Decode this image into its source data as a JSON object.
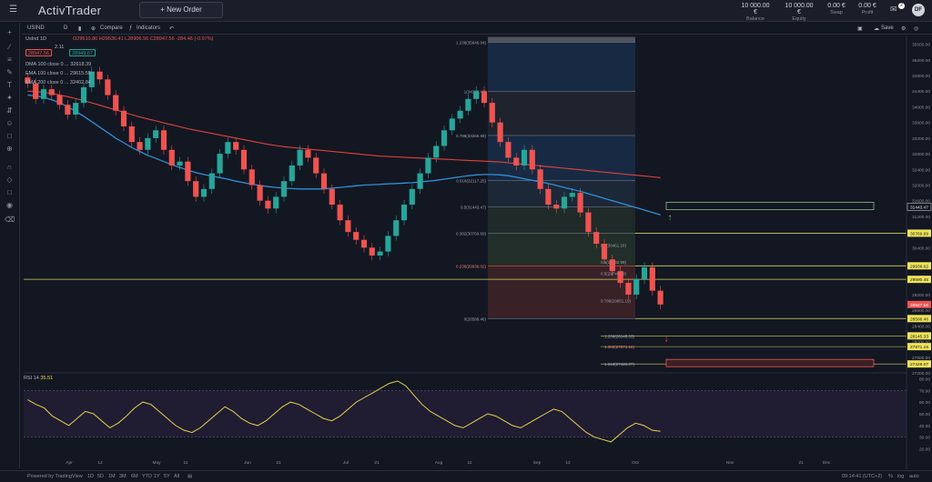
{
  "app": {
    "name": "ActivTrader",
    "new_order_label": "+ New Order"
  },
  "account": [
    {
      "value": "10 000.00 €",
      "label": "Balance"
    },
    {
      "value": "10 000.00 €",
      "label": "Equity"
    },
    {
      "value": "0.00 €",
      "label": "Swap"
    },
    {
      "value": "0.00 €",
      "label": "Profit"
    }
  ],
  "notifications_count": "2",
  "user_initials": "DF",
  "toolbar": {
    "symbol": "USIND",
    "interval": "D",
    "compare": "Compare",
    "indicators": "Indicators",
    "save": "Save"
  },
  "legend": {
    "symbol_line": "UsInd  1D",
    "ohlc": "O29510.86 H29536.41 L28906.56 C28947.56 -284.46 (-0.97%)",
    "sell_price": "28947.56",
    "spread": "2.11",
    "buy_price": "28949.67",
    "line1": "DMA 100 close 0 ... 32618.39",
    "line2": "EMA 100 close 0 ... 29615.59",
    "line3": "EMA 200 close 0 ... 32402.84"
  },
  "fib_levels": [
    {
      "label": "1.236(35646.04)",
      "price": 35646.04
    },
    {
      "label": "1(34398.48)",
      "price": 34398.48
    },
    {
      "label": "0.786(33266.98)",
      "price": 33266.98
    },
    {
      "label": "0.618(32117.25)",
      "price": 32117.25
    },
    {
      "label": "0.5(31443.47)",
      "price": 31443.47
    },
    {
      "label": "0.382(30769.69)",
      "price": 30769.69
    },
    {
      "label": "0.236(29936.02)",
      "price": 29936.02
    },
    {
      "label": "0(28588.46)",
      "price": 28588.46
    }
  ],
  "fib_ext_levels": [
    {
      "label": "1.236(28145.33)",
      "price": 28145.33
    },
    {
      "label": "1.382(27871.16)",
      "price": 27871.16
    },
    {
      "label": "1.618(27428.07)",
      "price": 27428.07
    }
  ],
  "fib_inner_labels": [
    "0.5(30461.16)",
    "0.5(30032.99)",
    "0.5(29748.89)",
    "0.786(29051.19)"
  ],
  "price_axis": {
    "ticks": [
      "35600.00",
      "35200.00",
      "34800.00",
      "34400.00",
      "34000.00",
      "33600.00",
      "33200.00",
      "32800.00",
      "32400.00",
      "32000.00",
      "31600.00",
      "31200.00",
      "30800.00",
      "30400.00",
      "30000.00",
      "29600.00",
      "29200.00",
      "28800.00",
      "28400.00",
      "28000.00",
      "27600.00",
      "27200.00"
    ],
    "tick_values": [
      35600,
      35200,
      34800,
      34400,
      34000,
      33600,
      33200,
      32800,
      32400,
      32000,
      31600,
      31200,
      30800,
      30400,
      30000,
      29600,
      29200,
      28800,
      28400,
      28000,
      27600,
      27200
    ],
    "labels": [
      {
        "text": "31443.47",
        "price": 31443.47,
        "color": "#e0e0e0",
        "bg": "#131722"
      },
      {
        "text": "30769.69",
        "price": 30769.69,
        "color": "#131722",
        "bg": "#f0e35a"
      },
      {
        "text": "29936.02",
        "price": 29936.02,
        "color": "#131722",
        "bg": "#f0e35a"
      },
      {
        "text": "29590.45",
        "price": 29590.45,
        "color": "#131722",
        "bg": "#f0e35a"
      },
      {
        "text": "28947.56",
        "price": 28947.56,
        "color": "#ffffff",
        "bg": "#ef5350"
      },
      {
        "text": "28588.46",
        "price": 28588.46,
        "color": "#131722",
        "bg": "#f0e35a"
      },
      {
        "text": "28145.33",
        "price": 28145.33,
        "color": "#131722",
        "bg": "#f0e35a"
      },
      {
        "text": "27871.16",
        "price": 27871.16,
        "color": "#131722",
        "bg": "#f0e35a"
      },
      {
        "text": "27428.07",
        "price": 27428.07,
        "color": "#131722",
        "bg": "#f0e35a"
      }
    ]
  },
  "time_axis": [
    "Apr",
    "12",
    "May",
    "11",
    "Jun",
    "21",
    "Jul",
    "21",
    "Aug",
    "11",
    "Sep",
    "12",
    "Oct",
    "Nov",
    "21",
    "Dec"
  ],
  "rsi": {
    "label": "RSI 14",
    "value": "35.51",
    "ticks": [
      "80.00",
      "70.00",
      "60.00",
      "50.00",
      "40.00",
      "30.00",
      "20.00"
    ],
    "tick_values": [
      80,
      70,
      60,
      50,
      40,
      30,
      20
    ],
    "values": [
      62,
      58,
      55,
      48,
      44,
      40,
      46,
      52,
      50,
      44,
      38,
      42,
      48,
      55,
      60,
      58,
      52,
      46,
      40,
      36,
      34,
      38,
      44,
      50,
      56,
      52,
      46,
      42,
      40,
      44,
      50,
      56,
      60,
      58,
      54,
      50,
      46,
      44,
      48,
      54,
      60,
      64,
      68,
      72,
      76,
      78,
      74,
      66,
      58,
      52,
      48,
      44,
      40,
      38,
      42,
      46,
      50,
      48,
      44,
      40,
      38,
      42,
      46,
      50,
      54,
      52,
      46,
      40,
      34,
      30,
      28,
      26,
      32,
      38,
      42,
      40,
      36,
      35
    ]
  },
  "bottom": {
    "powered": "Powered by TradingView",
    "ranges": [
      "1D",
      "5D",
      "1M",
      "3M",
      "6M",
      "YTD",
      "1Y",
      "5Y",
      "All"
    ],
    "time": "09:14:41 (UTC+2)",
    "opts": [
      "%",
      "log",
      "auto"
    ]
  },
  "chart_data": {
    "type": "candlestick",
    "title": "UsInd 1D",
    "ylim": [
      27200,
      35800
    ],
    "closes": [
      34600,
      34200,
      34450,
      34300,
      34050,
      33800,
      34100,
      34500,
      34900,
      34700,
      34300,
      33900,
      33500,
      33100,
      32900,
      33200,
      33400,
      32900,
      32500,
      32600,
      32100,
      31700,
      31900,
      32300,
      32800,
      33100,
      32900,
      32400,
      32000,
      31600,
      31400,
      31700,
      32100,
      32500,
      32900,
      32700,
      32300,
      31900,
      31500,
      31100,
      30800,
      30600,
      30400,
      30200,
      30300,
      30700,
      31100,
      31500,
      31900,
      32300,
      32700,
      33000,
      33400,
      33700,
      33900,
      34200,
      34400,
      34100,
      33600,
      33100,
      32700,
      32500,
      32900,
      32400,
      31900,
      31500,
      31400,
      31700,
      31800,
      31300,
      30800,
      30500,
      30100,
      29800,
      29500,
      29200,
      29600,
      29900,
      29300,
      28947.56
    ],
    "ma_blue": [
      34300,
      34280,
      34240,
      34180,
      34100,
      34000,
      33880,
      33760,
      33620,
      33480,
      33340,
      33200,
      33080,
      32960,
      32860,
      32760,
      32680,
      32600,
      32520,
      32450,
      32380,
      32320,
      32270,
      32230,
      32190,
      32150,
      32100,
      32060,
      32020,
      31990,
      31960,
      31940,
      31920,
      31910,
      31900,
      31900,
      31900,
      31900,
      31920,
      31940,
      31960,
      31980,
      32000,
      32010,
      32020,
      32030,
      32040,
      32050,
      32060,
      32080,
      32100,
      32120,
      32150,
      32180,
      32210,
      32240,
      32260,
      32270,
      32270,
      32260,
      32240,
      32200,
      32160,
      32120,
      32080,
      32040,
      31990,
      31940,
      31890,
      31840,
      31780,
      31720,
      31660,
      31600,
      31540,
      31480,
      31420,
      31360,
      31300,
      31240
    ],
    "ma_red": [
      34400,
      34390,
      34370,
      34340,
      34300,
      34260,
      34210,
      34160,
      34100,
      34040,
      33980,
      33920,
      33860,
      33800,
      33740,
      33690,
      33640,
      33590,
      33540,
      33490,
      33440,
      33400,
      33360,
      33320,
      33280,
      33240,
      33200,
      33160,
      33120,
      33080,
      33040,
      33010,
      32980,
      32960,
      32940,
      32920,
      32900,
      32880,
      32860,
      32840,
      32820,
      32800,
      32780,
      32760,
      32740,
      32730,
      32720,
      32710,
      32700,
      32690,
      32680,
      32670,
      32660,
      32650,
      32640,
      32630,
      32620,
      32610,
      32600,
      32590,
      32570,
      32550,
      32530,
      32510,
      32490,
      32470,
      32450,
      32430,
      32410,
      32390,
      32370,
      32350,
      32330,
      32310,
      32290,
      32270,
      32250,
      32230,
      32210,
      32190
    ]
  },
  "colors": {
    "up": "#26a69a",
    "down": "#ef5350",
    "ma_blue": "#2f8fd8",
    "ma_red": "#e0433f",
    "fib_yellow": "#d8d25a",
    "rsi": "#e6d34a"
  }
}
